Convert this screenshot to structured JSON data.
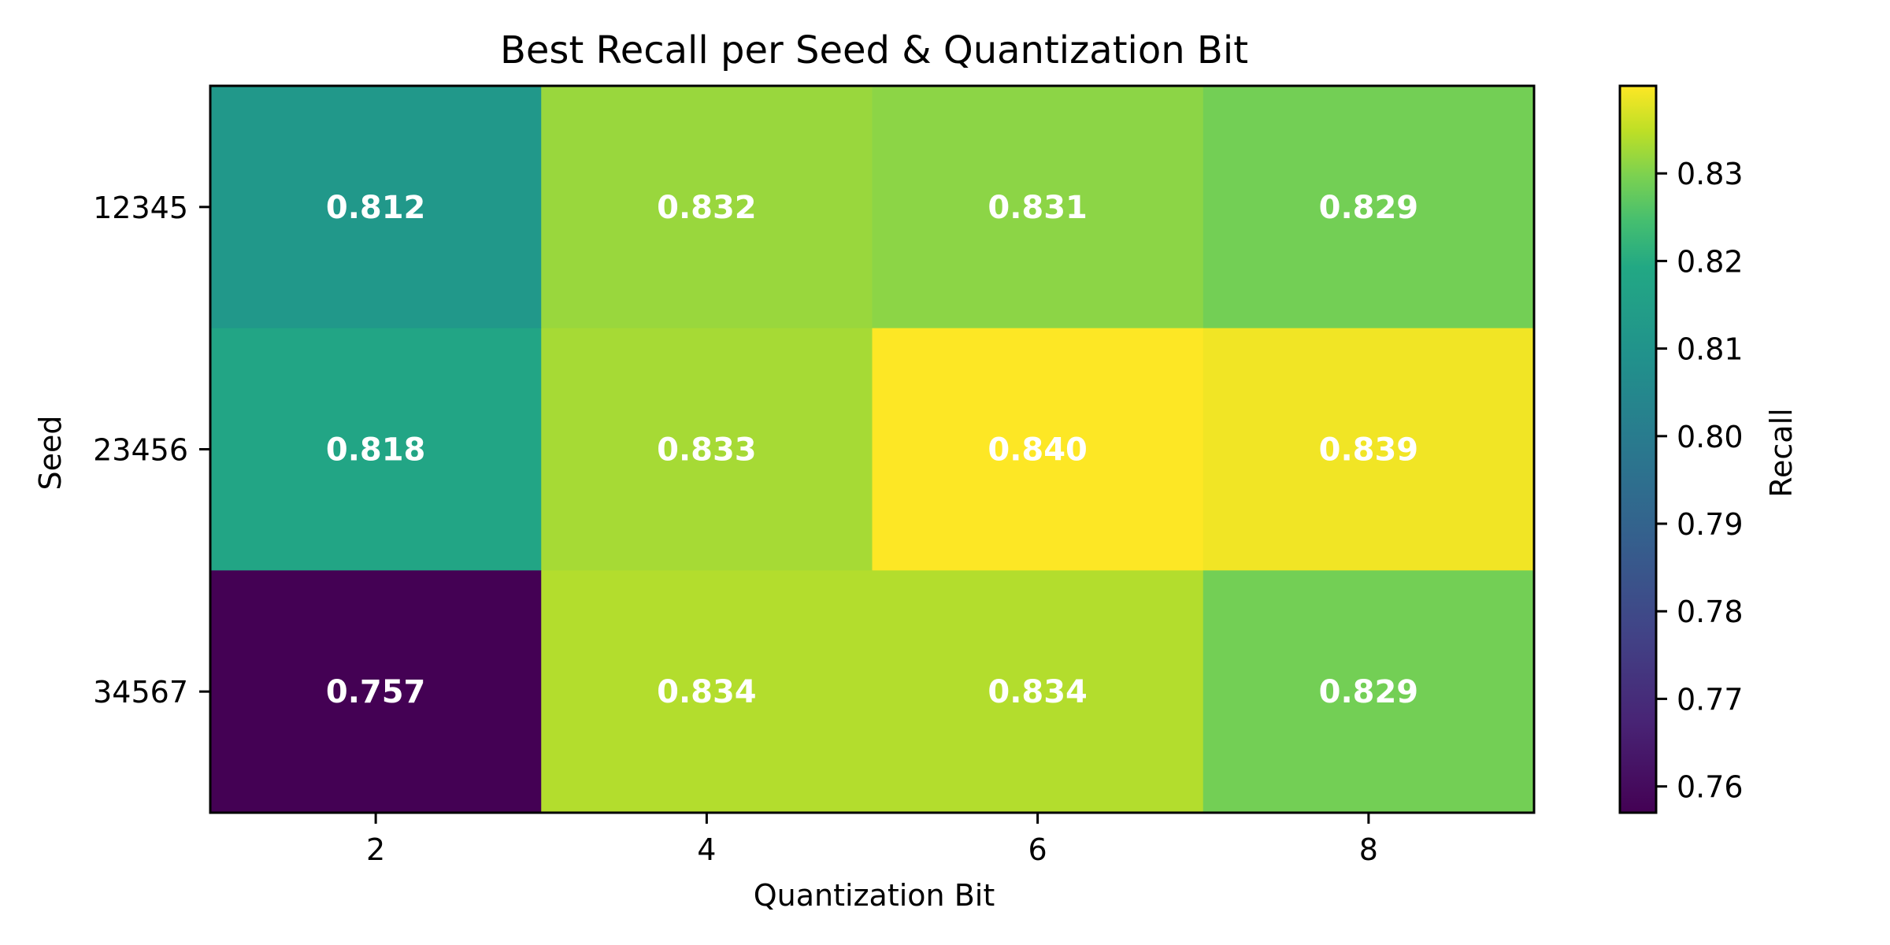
{
  "chart_data": {
    "type": "heatmap",
    "title": "Best Recall per Seed & Quantization Bit",
    "xlabel": "Quantization Bit",
    "ylabel": "Seed",
    "x_categories": [
      "2",
      "4",
      "6",
      "8"
    ],
    "y_categories": [
      "12345",
      "23456",
      "34567"
    ],
    "values": [
      [
        0.812,
        0.832,
        0.831,
        0.829
      ],
      [
        0.818,
        0.833,
        0.84,
        0.839
      ],
      [
        0.757,
        0.834,
        0.834,
        0.829
      ]
    ],
    "cell_labels": [
      [
        "0.812",
        "0.832",
        "0.831",
        "0.829"
      ],
      [
        "0.818",
        "0.833",
        "0.840",
        "0.839"
      ],
      [
        "0.757",
        "0.834",
        "0.834",
        "0.829"
      ]
    ],
    "colormap": "viridis",
    "colorbar": {
      "label": "Recall",
      "range": [
        0.757,
        0.84
      ],
      "ticks": [
        0.76,
        0.77,
        0.78,
        0.79,
        0.8,
        0.81,
        0.82,
        0.83
      ],
      "tick_labels": [
        "0.76",
        "0.77",
        "0.78",
        "0.79",
        "0.80",
        "0.81",
        "0.82",
        "0.83"
      ]
    },
    "grid": false,
    "legend": "none"
  }
}
